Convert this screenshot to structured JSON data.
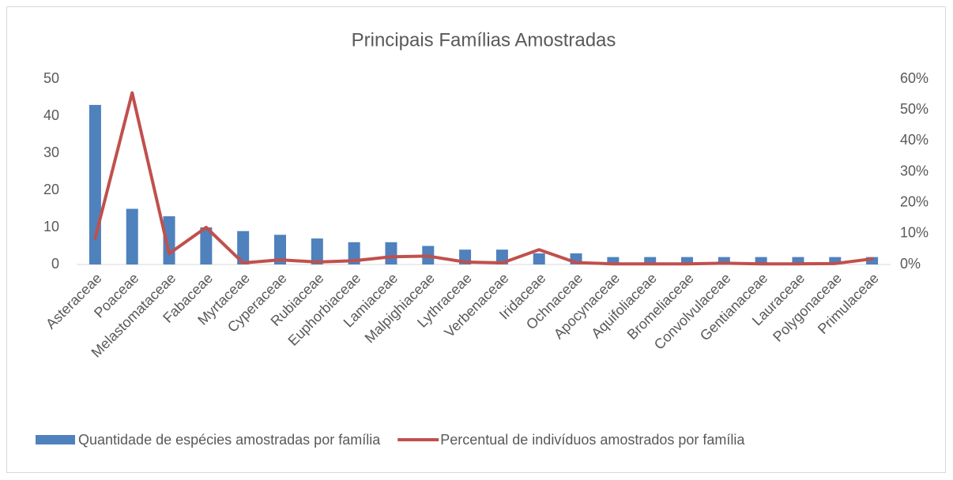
{
  "chart_data": {
    "type": "bar",
    "title": "Principais Famílias Amostradas",
    "categories": [
      "Asteraceae",
      "Poaceae",
      "Melastomataceae",
      "Fabaceae",
      "Myrtaceae",
      "Cyperaceae",
      "Rubiaceae",
      "Euphorbiaceae",
      "Lamiaceae",
      "Malpighiaceae",
      "Lythraceae",
      "Verbenaceae",
      "Iridaceae",
      "Ochnaceae",
      "Apocynaceae",
      "Aquifoliaceae",
      "Bromeliaceae",
      "Convolvulaceae",
      "Gentianaceae",
      "Lauraceae",
      "Polygonaceae",
      "Primulaceae"
    ],
    "series": [
      {
        "name": "Quantidade de espécies amostradas por família",
        "type": "bar",
        "color": "#4f81bd",
        "values": [
          43,
          15,
          13,
          10,
          9,
          8,
          7,
          6,
          6,
          5,
          4,
          4,
          3,
          3,
          2,
          2,
          2,
          2,
          2,
          2,
          2,
          2
        ]
      },
      {
        "name": "Percentual de indivíduos amostrados por família",
        "type": "line",
        "axis": "y2",
        "color": "#c0504d",
        "values": [
          8.5,
          55.5,
          3.5,
          12,
          0.5,
          1.5,
          0.8,
          1.2,
          2.5,
          2.7,
          0.8,
          0.5,
          4.8,
          0.6,
          0.2,
          0.2,
          0.2,
          0.4,
          0.2,
          0.2,
          0.3,
          1.8
        ]
      }
    ],
    "ylim": [
      0,
      50
    ],
    "yticks": [
      0,
      10,
      20,
      30,
      40,
      50
    ],
    "y2lim": [
      0,
      60
    ],
    "y2ticks": [
      {
        "value": 0,
        "label": "0%"
      },
      {
        "value": 10,
        "label": "10%"
      },
      {
        "value": 20,
        "label": "20%"
      },
      {
        "value": 30,
        "label": "30%"
      },
      {
        "value": 40,
        "label": "40%"
      },
      {
        "value": 50,
        "label": "50%"
      },
      {
        "value": 60,
        "label": "60%"
      }
    ],
    "grid": false,
    "legend": "bottom"
  }
}
